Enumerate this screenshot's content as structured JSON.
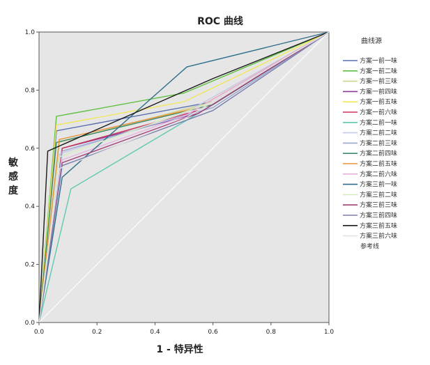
{
  "chart_data": {
    "type": "line",
    "title": "ROC 曲线",
    "xlabel": "1 - 特异性",
    "ylabel": "敏感度",
    "xlim": [
      0,
      1
    ],
    "ylim": [
      0,
      1
    ],
    "xticks": [
      "0.0",
      "0.2",
      "0.4",
      "0.6",
      "0.8",
      "1.0"
    ],
    "yticks": [
      "0.0",
      "0.2",
      "0.4",
      "0.6",
      "0.8",
      "1.0"
    ],
    "grid": false,
    "legend_title": "曲线源",
    "legend_position": "right",
    "series": [
      {
        "name": "方案一前一味",
        "color": "#5a6fb0",
        "x": [
          0,
          0.06,
          0.6,
          1
        ],
        "y": [
          0,
          0.66,
          0.76,
          1
        ]
      },
      {
        "name": "方案一前二味",
        "color": "#5fbf3f",
        "x": [
          0,
          0.06,
          0.5,
          1
        ],
        "y": [
          0,
          0.71,
          0.79,
          1
        ]
      },
      {
        "name": "方案一前三味",
        "color": "#c9d68c",
        "x": [
          0,
          0.07,
          0.6,
          1
        ],
        "y": [
          0,
          0.62,
          0.76,
          1
        ]
      },
      {
        "name": "方案一前四味",
        "color": "#8b3a9a",
        "x": [
          0,
          0.08,
          0.55,
          1
        ],
        "y": [
          0,
          0.6,
          0.72,
          1
        ]
      },
      {
        "name": "方案一前五味",
        "color": "#f2e65a",
        "x": [
          0,
          0.06,
          0.5,
          1
        ],
        "y": [
          0,
          0.68,
          0.76,
          1
        ]
      },
      {
        "name": "方案一前六味",
        "color": "#c8325a",
        "x": [
          0,
          0.08,
          0.55,
          1
        ],
        "y": [
          0,
          0.6,
          0.73,
          1
        ]
      },
      {
        "name": "方案二前一味",
        "color": "#5fc9b0",
        "x": [
          0,
          0.11,
          0.6,
          1
        ],
        "y": [
          0,
          0.46,
          0.75,
          1
        ]
      },
      {
        "name": "方案二前二味",
        "color": "#c6c8e8",
        "x": [
          0,
          0.07,
          0.5,
          1
        ],
        "y": [
          0,
          0.58,
          0.72,
          1
        ]
      },
      {
        "name": "方案二前三味",
        "color": "#9aa6cf",
        "x": [
          0,
          0.08,
          0.6,
          1
        ],
        "y": [
          0,
          0.59,
          0.74,
          1
        ]
      },
      {
        "name": "方案二前四味",
        "color": "#3f8a6a",
        "x": [
          0,
          0.06,
          0.6,
          1
        ],
        "y": [
          0,
          0.62,
          0.75,
          1
        ]
      },
      {
        "name": "方案二前五味",
        "color": "#e8923a",
        "x": [
          0,
          0.07,
          0.55,
          1
        ],
        "y": [
          0,
          0.63,
          0.74,
          1
        ]
      },
      {
        "name": "方案二前六味",
        "color": "#e6b3e0",
        "x": [
          0,
          0.08,
          0.5,
          1
        ],
        "y": [
          0,
          0.56,
          0.71,
          1
        ]
      },
      {
        "name": "方案三前一味",
        "color": "#2f6f8c",
        "x": [
          0,
          0.08,
          0.51,
          1
        ],
        "y": [
          0,
          0.5,
          0.88,
          1
        ]
      },
      {
        "name": "方案三前二味",
        "color": "#d8ecc4",
        "x": [
          0,
          0.07,
          0.6,
          1
        ],
        "y": [
          0,
          0.57,
          0.76,
          1
        ]
      },
      {
        "name": "方案三前三味",
        "color": "#a0407a",
        "x": [
          0,
          0.08,
          0.55,
          1
        ],
        "y": [
          0,
          0.55,
          0.72,
          1
        ]
      },
      {
        "name": "方案三前四味",
        "color": "#7a7fae",
        "x": [
          0,
          0.08,
          0.6,
          1
        ],
        "y": [
          0,
          0.54,
          0.73,
          1
        ]
      },
      {
        "name": "方案三前五味",
        "color": "#1a1a1a",
        "x": [
          0,
          0.03,
          0.6,
          1
        ],
        "y": [
          0,
          0.59,
          0.84,
          1
        ]
      },
      {
        "name": "方案三前六味",
        "color": "#e4e4e4",
        "x": [
          0,
          0.07,
          0.5,
          1
        ],
        "y": [
          0,
          0.53,
          0.7,
          1
        ]
      },
      {
        "name": "参考线",
        "color": "#ffffff",
        "x": [
          0,
          1
        ],
        "y": [
          0,
          1
        ]
      }
    ]
  }
}
